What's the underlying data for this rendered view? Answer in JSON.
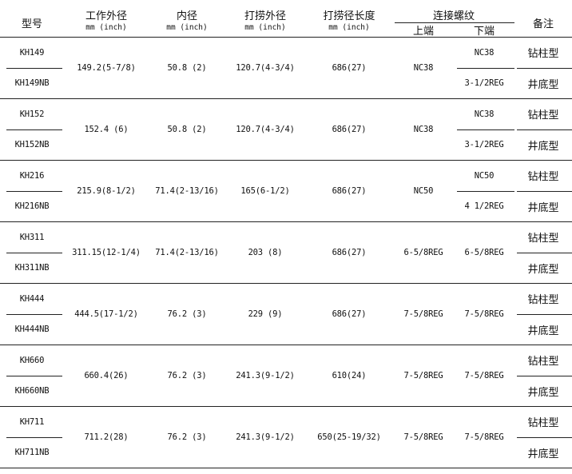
{
  "headers": {
    "model": "型号",
    "work_od": "工作外径",
    "work_od_unit": "mm (inch)",
    "id": "内径",
    "id_unit": "mm (inch)",
    "fish_od": "打捞外径",
    "fish_od_unit": "mm (inch)",
    "fish_len": "打捞径长度",
    "fish_len_unit": "mm (inch)",
    "thread": "连接螺纹",
    "thread_upper": "上端",
    "thread_lower": "下端",
    "note": "备注"
  },
  "rows": [
    {
      "model_a": "KH149",
      "model_b": "KH149NB",
      "work_od": "149.2(5-7/8)",
      "id": "50.8 (2)",
      "fish_od": "120.7(4-3/4)",
      "fish_len": "686(27)",
      "upper": "NC38",
      "lower_a": "NC38",
      "lower_b": "3-1/2REG",
      "lower_single": "",
      "note_a": "钻柱型",
      "note_b": "井底型"
    },
    {
      "model_a": "KH152",
      "model_b": "KH152NB",
      "work_od": "152.4 (6)",
      "id": "50.8 (2)",
      "fish_od": "120.7(4-3/4)",
      "fish_len": "686(27)",
      "upper": "NC38",
      "lower_a": "NC38",
      "lower_b": "3-1/2REG",
      "lower_single": "",
      "note_a": "钻柱型",
      "note_b": "井底型"
    },
    {
      "model_a": "KH216",
      "model_b": "KH216NB",
      "work_od": "215.9(8-1/2)",
      "id": "71.4(2-13/16)",
      "fish_od": "165(6-1/2)",
      "fish_len": "686(27)",
      "upper": "NC50",
      "lower_a": "NC50",
      "lower_b": "4 1/2REG",
      "lower_single": "",
      "note_a": "钻柱型",
      "note_b": "井底型"
    },
    {
      "model_a": "KH311",
      "model_b": "KH311NB",
      "work_od": "311.15(12-1/4)",
      "id": "71.4(2-13/16)",
      "fish_od": "203 (8)",
      "fish_len": "686(27)",
      "upper": "6-5/8REG",
      "lower_a": "",
      "lower_b": "",
      "lower_single": "6-5/8REG",
      "note_a": "钻柱型",
      "note_b": "井底型"
    },
    {
      "model_a": "KH444",
      "model_b": "KH444NB",
      "work_od": "444.5(17-1/2)",
      "id": "76.2 (3)",
      "fish_od": "229 (9)",
      "fish_len": "686(27)",
      "upper": "7-5/8REG",
      "lower_a": "",
      "lower_b": "",
      "lower_single": "7-5/8REG",
      "note_a": "钻柱型",
      "note_b": "井底型"
    },
    {
      "model_a": "KH660",
      "model_b": "KH660NB",
      "work_od": "660.4(26)",
      "id": "76.2 (3)",
      "fish_od": "241.3(9-1/2)",
      "fish_len": "610(24)",
      "upper": "7-5/8REG",
      "lower_a": "",
      "lower_b": "",
      "lower_single": "7-5/8REG",
      "note_a": "钻柱型",
      "note_b": "井底型"
    },
    {
      "model_a": "KH711",
      "model_b": "KH711NB",
      "work_od": "711.2(28)",
      "id": "76.2 (3)",
      "fish_od": "241.3(9-1/2)",
      "fish_len": "650(25-19/32)",
      "upper": "7-5/8REG",
      "lower_a": "",
      "lower_b": "",
      "lower_single": "7-5/8REG",
      "note_a": "钻柱型",
      "note_b": "井底型"
    }
  ]
}
